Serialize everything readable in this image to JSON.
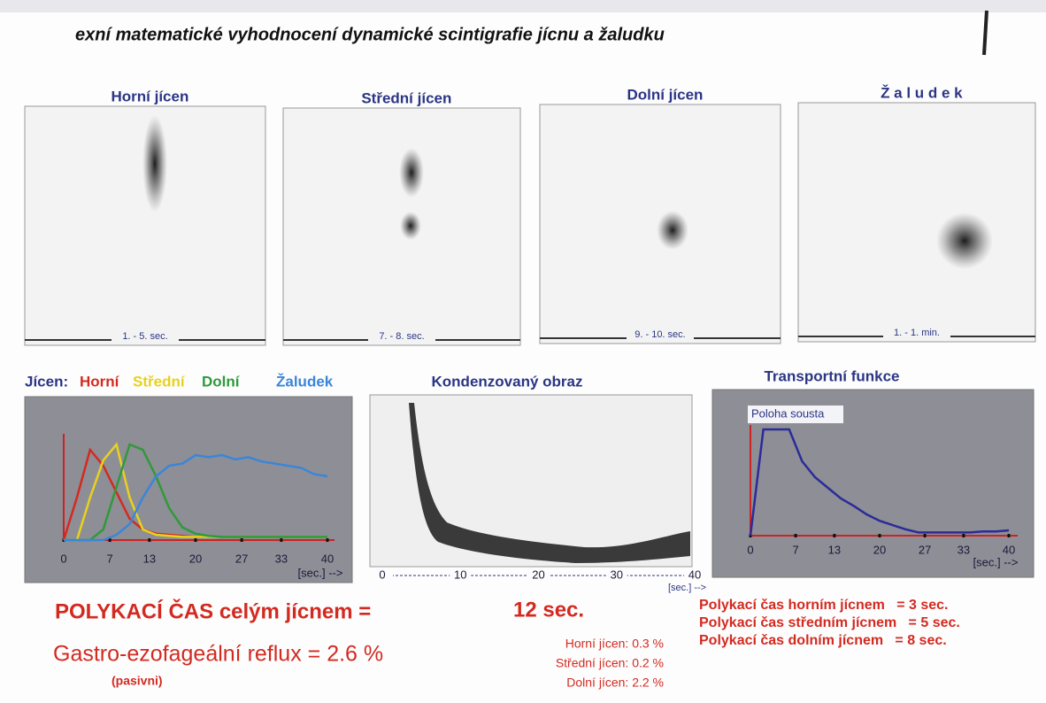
{
  "header": {
    "title": "exní matematické vyhodnocení dynamické scintigrafie jícnu a žaludku"
  },
  "images": [
    {
      "title": "Horní jícen",
      "caption": "1. - 5. sec."
    },
    {
      "title": "Střední jícen",
      "caption": "7. - 8. sec."
    },
    {
      "title": "Dolní jícen",
      "caption": "9. - 10. sec."
    },
    {
      "title": "Ž a l u d e k",
      "caption": "1. - 1. min."
    }
  ],
  "curves_chart": {
    "type": "line",
    "legend_prefix": "Jícen:",
    "x": [
      0,
      2,
      4,
      6,
      8,
      10,
      12,
      14,
      16,
      18,
      20,
      22,
      24,
      26,
      28,
      30,
      32,
      34,
      36,
      38,
      40
    ],
    "xlim": [
      0,
      40
    ],
    "ylim": [
      0,
      100
    ],
    "xticks": [
      0,
      7,
      13,
      20,
      27,
      33,
      40
    ],
    "x_unit": "[sec.] -->",
    "series": [
      {
        "name": "Horní",
        "color": "#d42a1e",
        "values": [
          0,
          40,
          85,
          70,
          45,
          20,
          10,
          6,
          5,
          4,
          3,
          3,
          3,
          3,
          3,
          3,
          3,
          3,
          3,
          3,
          3
        ]
      },
      {
        "name": "Střední",
        "color": "#e8d21c",
        "values": [
          0,
          0,
          40,
          75,
          90,
          40,
          10,
          5,
          4,
          3,
          3,
          3,
          3,
          3,
          3,
          3,
          3,
          3,
          3,
          3,
          3
        ]
      },
      {
        "name": "Dolní",
        "color": "#2f9a3a",
        "values": [
          0,
          0,
          0,
          10,
          50,
          90,
          85,
          60,
          30,
          12,
          6,
          4,
          3,
          3,
          3,
          3,
          3,
          3,
          3,
          3,
          3
        ]
      },
      {
        "name": "Žaludek",
        "color": "#3a86d8",
        "values": [
          0,
          0,
          0,
          0,
          5,
          15,
          40,
          60,
          70,
          72,
          80,
          78,
          80,
          76,
          78,
          74,
          72,
          70,
          68,
          62,
          60
        ]
      }
    ]
  },
  "condensed": {
    "title": "Kondenzovaný obraz",
    "xlim": [
      0,
      40
    ],
    "xticks": [
      0,
      10,
      20,
      30,
      40
    ],
    "x_unit": "[sec.] -->"
  },
  "transport": {
    "type": "line",
    "title": "Transportní funkce",
    "label": "Poloha sousta",
    "x": [
      0,
      2,
      4,
      6,
      8,
      10,
      12,
      14,
      16,
      18,
      20,
      22,
      24,
      26,
      28,
      30,
      32,
      34,
      36,
      38,
      40
    ],
    "values": [
      0,
      100,
      100,
      100,
      70,
      55,
      45,
      35,
      28,
      20,
      14,
      10,
      6,
      3,
      3,
      3,
      3,
      3,
      4,
      4,
      5
    ],
    "color": "#2b2b9a",
    "xlim": [
      0,
      40
    ],
    "ylim": [
      0,
      100
    ],
    "xticks": [
      0,
      7,
      13,
      20,
      27,
      33,
      40
    ],
    "x_unit": "[sec.] -->"
  },
  "results": {
    "swallow_label": "POLYKACÍ ČAS celým jícnem  =",
    "swallow_value": "12 sec.",
    "reflux": "Gastro-ezofageální reflux = 2.6 %",
    "reflux_note": "(pasivni)",
    "reflux_parts": [
      "Horní jícen: 0.3 %",
      "Střední jícen: 0.2 %",
      "Dolní jícen: 2.2 %"
    ],
    "times": [
      "Polykací čas horním jícnem   = 3 sec.",
      "Polykací čas středním jícnem   = 5 sec.",
      "Polykací čas dolním jícnem   = 8 sec."
    ]
  }
}
